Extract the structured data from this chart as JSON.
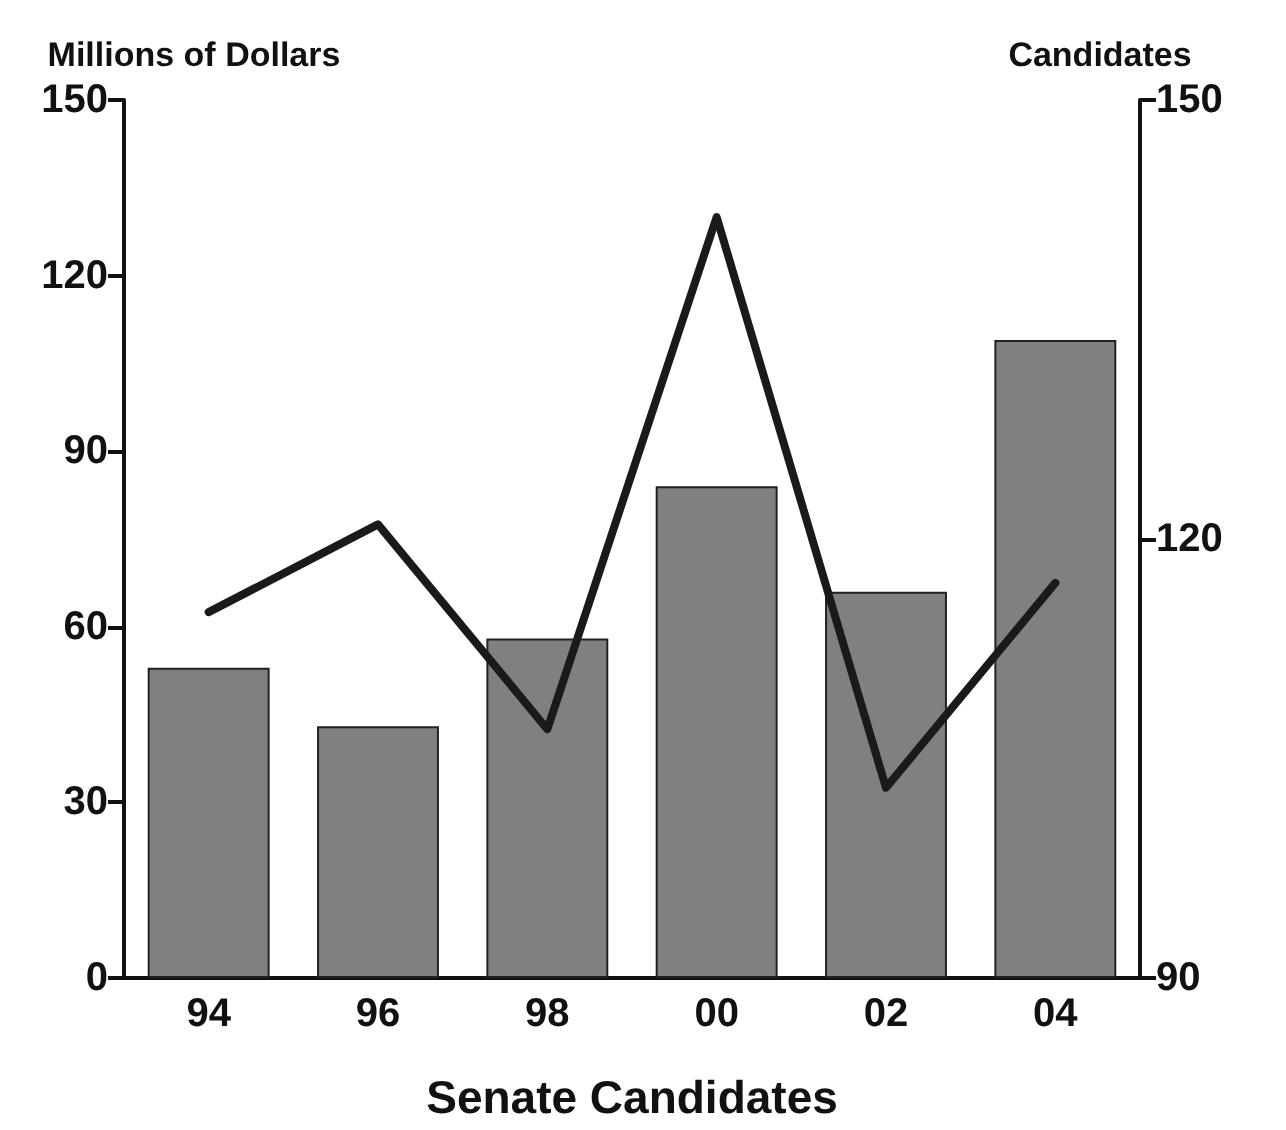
{
  "chart_data": {
    "type": "bar",
    "xlabel": "Senate Candidates",
    "ylabel": "Millions of Dollars",
    "y2label": "Candidates",
    "categories": [
      "94",
      "96",
      "98",
      "00",
      "02",
      "04"
    ],
    "series": [
      {
        "type": "bar",
        "color": "#808082",
        "values": [
          53,
          43,
          58,
          84,
          66,
          109
        ]
      },
      {
        "type": "line",
        "axis": "y2",
        "color": "#1a1a1a",
        "values": [
          115,
          121,
          107,
          142,
          103,
          117
        ]
      }
    ],
    "ylim": [
      0,
      150
    ],
    "yticks": [
      0,
      30,
      60,
      90,
      120,
      150
    ],
    "y2lim": [
      90,
      150
    ],
    "y2ticks": [
      90,
      120,
      150
    ],
    "grid": false,
    "marker": "none",
    "line_style": "solid"
  }
}
